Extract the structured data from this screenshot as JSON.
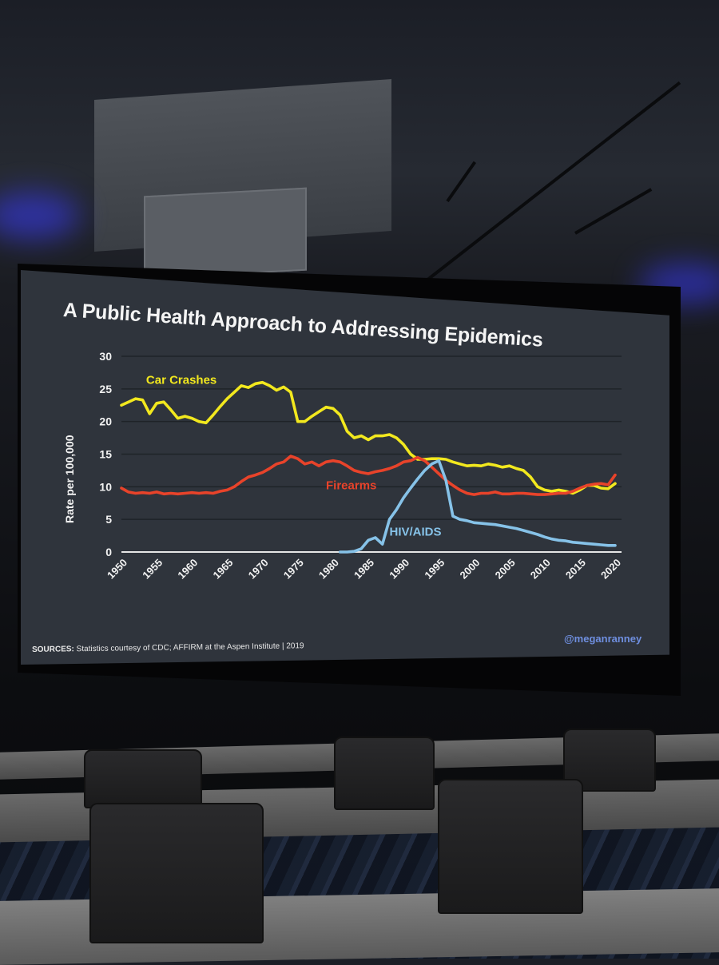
{
  "slide": {
    "title": "A Public Health Approach to Addressing Epidemics",
    "sources_label": "SOURCES:",
    "sources_text": "Statistics courtesy of CDC; AFFIRM at the Aspen Institute | 2019",
    "handle": "@meganranney"
  },
  "chart_data": {
    "type": "line",
    "title": "A Public Health Approach to Addressing Epidemics",
    "xlabel": "",
    "ylabel": "Rate per 100,000",
    "xlim": [
      1950,
      2020
    ],
    "ylim": [
      0,
      30
    ],
    "x_ticks": [
      "1950",
      "1955",
      "1960",
      "1965",
      "1970",
      "1975",
      "1980",
      "1985",
      "1990",
      "1995",
      "2000",
      "2005",
      "2010",
      "2015",
      "2020"
    ],
    "y_ticks": [
      "0",
      "5",
      "10",
      "15",
      "20",
      "25",
      "30"
    ],
    "grid": true,
    "colors": {
      "Car Crashes": "#f2e81e",
      "Firearms": "#e8432a",
      "HIV/AIDS": "#86c2e8"
    },
    "series": [
      {
        "name": "Car Crashes",
        "x": [
          1950,
          1951,
          1952,
          1953,
          1954,
          1955,
          1956,
          1957,
          1958,
          1959,
          1960,
          1961,
          1962,
          1963,
          1964,
          1965,
          1966,
          1967,
          1968,
          1969,
          1970,
          1971,
          1972,
          1973,
          1974,
          1975,
          1976,
          1977,
          1978,
          1979,
          1980,
          1981,
          1982,
          1983,
          1984,
          1985,
          1986,
          1987,
          1988,
          1989,
          1990,
          1991,
          1992,
          1993,
          1994,
          1995,
          1996,
          1997,
          1998,
          1999,
          2000,
          2001,
          2002,
          2003,
          2004,
          2005,
          2006,
          2007,
          2008,
          2009,
          2010,
          2011,
          2012,
          2013,
          2014,
          2015,
          2016,
          2017,
          2018,
          2019,
          2020
        ],
        "values": [
          22.5,
          23.0,
          23.5,
          23.3,
          21.2,
          22.8,
          23.0,
          21.8,
          20.5,
          20.8,
          20.5,
          20.0,
          19.8,
          21.0,
          22.3,
          23.5,
          24.5,
          25.5,
          25.2,
          25.8,
          26.0,
          25.5,
          24.8,
          25.3,
          24.5,
          20.0,
          20.0,
          20.8,
          21.5,
          22.2,
          22.0,
          21.0,
          18.5,
          17.5,
          17.8,
          17.2,
          17.8,
          17.8,
          18.0,
          17.5,
          16.5,
          15.0,
          14.2,
          14.2,
          14.3,
          14.3,
          14.2,
          13.8,
          13.5,
          13.2,
          13.3,
          13.2,
          13.5,
          13.3,
          13.0,
          13.2,
          12.8,
          12.5,
          11.5,
          10.0,
          9.5,
          9.3,
          9.5,
          9.3,
          9.0,
          9.5,
          10.2,
          10.2,
          9.8,
          9.7,
          10.5
        ]
      },
      {
        "name": "Firearms",
        "x": [
          1950,
          1951,
          1952,
          1953,
          1954,
          1955,
          1956,
          1957,
          1958,
          1959,
          1960,
          1961,
          1962,
          1963,
          1964,
          1965,
          1966,
          1967,
          1968,
          1969,
          1970,
          1971,
          1972,
          1973,
          1974,
          1975,
          1976,
          1977,
          1978,
          1979,
          1980,
          1981,
          1982,
          1983,
          1984,
          1985,
          1986,
          1987,
          1988,
          1989,
          1990,
          1991,
          1992,
          1993,
          1994,
          1995,
          1996,
          1997,
          1998,
          1999,
          2000,
          2001,
          2002,
          2003,
          2004,
          2005,
          2006,
          2007,
          2008,
          2009,
          2010,
          2011,
          2012,
          2013,
          2014,
          2015,
          2016,
          2017,
          2018,
          2019,
          2020
        ],
        "values": [
          9.8,
          9.2,
          9.0,
          9.1,
          9.0,
          9.2,
          8.9,
          9.0,
          8.9,
          9.0,
          9.1,
          9.0,
          9.1,
          9.0,
          9.3,
          9.5,
          10.0,
          10.8,
          11.5,
          11.8,
          12.2,
          12.8,
          13.5,
          13.8,
          14.7,
          14.3,
          13.5,
          13.8,
          13.2,
          13.8,
          14.0,
          13.8,
          13.2,
          12.5,
          12.2,
          12.0,
          12.3,
          12.5,
          12.8,
          13.2,
          13.8,
          14.0,
          14.5,
          14.0,
          13.0,
          12.0,
          11.0,
          10.2,
          9.5,
          9.0,
          8.8,
          9.0,
          9.0,
          9.2,
          8.9,
          8.9,
          9.0,
          9.0,
          8.9,
          8.8,
          8.8,
          8.9,
          9.0,
          9.0,
          9.3,
          9.8,
          10.2,
          10.4,
          10.5,
          10.3,
          11.8
        ]
      },
      {
        "name": "HIV/AIDS",
        "x": [
          1981,
          1982,
          1983,
          1984,
          1985,
          1986,
          1987,
          1988,
          1989,
          1990,
          1991,
          1992,
          1993,
          1994,
          1995,
          1996,
          1997,
          1998,
          1999,
          2000,
          2001,
          2002,
          2003,
          2004,
          2005,
          2006,
          2007,
          2008,
          2009,
          2010,
          2011,
          2012,
          2013,
          2014,
          2015,
          2016,
          2017,
          2018,
          2019,
          2020
        ],
        "values": [
          0,
          0,
          0.1,
          0.5,
          1.8,
          2.2,
          1.2,
          5.0,
          6.5,
          8.3,
          9.8,
          11.2,
          12.5,
          13.5,
          14.0,
          11.0,
          5.5,
          5.0,
          4.8,
          4.5,
          4.4,
          4.3,
          4.2,
          4.0,
          3.8,
          3.6,
          3.3,
          3.0,
          2.7,
          2.3,
          2.0,
          1.8,
          1.7,
          1.5,
          1.4,
          1.3,
          1.2,
          1.1,
          1.0,
          1.0
        ]
      }
    ],
    "annotations": [
      {
        "text": "Car Crashes",
        "series": "Car Crashes"
      },
      {
        "text": "Firearms",
        "series": "Firearms"
      },
      {
        "text": "HIV/AIDS",
        "series": "HIV/AIDS"
      }
    ]
  }
}
